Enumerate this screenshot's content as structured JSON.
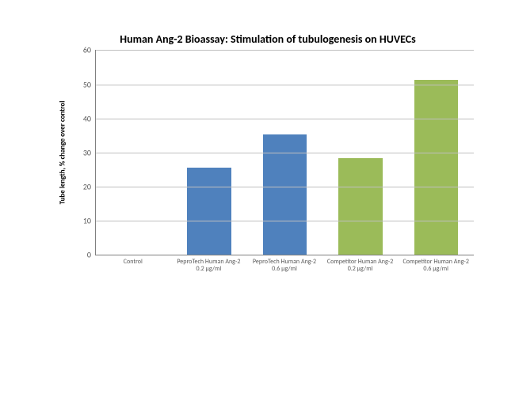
{
  "chart": {
    "type": "bar",
    "title": "Human Ang-2 Bioassay: Stimulation of tubulogenesis on HUVECs",
    "title_fontsize": 14,
    "title_color": "#000000",
    "ylabel": "Tube length, % change over control",
    "ylabel_fontsize": 9,
    "ylabel_fontweight": "bold",
    "ylim": [
      0,
      60
    ],
    "ytick_step": 10,
    "yticks": [
      0,
      10,
      20,
      30,
      40,
      50,
      60
    ],
    "tick_fontsize": 10,
    "xlabel_fontsize": 8,
    "axis_color": "#808080",
    "grid_color": "#bfbfbf",
    "background_color": "#ffffff",
    "bar_width": 0.58,
    "categories": [
      "Control",
      "PeproTech Human Ang-2 0.2 µg/ml",
      "PeproTech Human Ang-2 0.6 µg/ml",
      "Competitor Human Ang-2 0.2 µg/ml",
      "Competitor Human Ang-2 0.6 µg/ml"
    ],
    "values": [
      0,
      25.6,
      35.2,
      28.3,
      51.3
    ],
    "bar_colors": [
      "#4f81bd",
      "#4f81bd",
      "#4f81bd",
      "#9bbb59",
      "#9bbb59"
    ]
  }
}
